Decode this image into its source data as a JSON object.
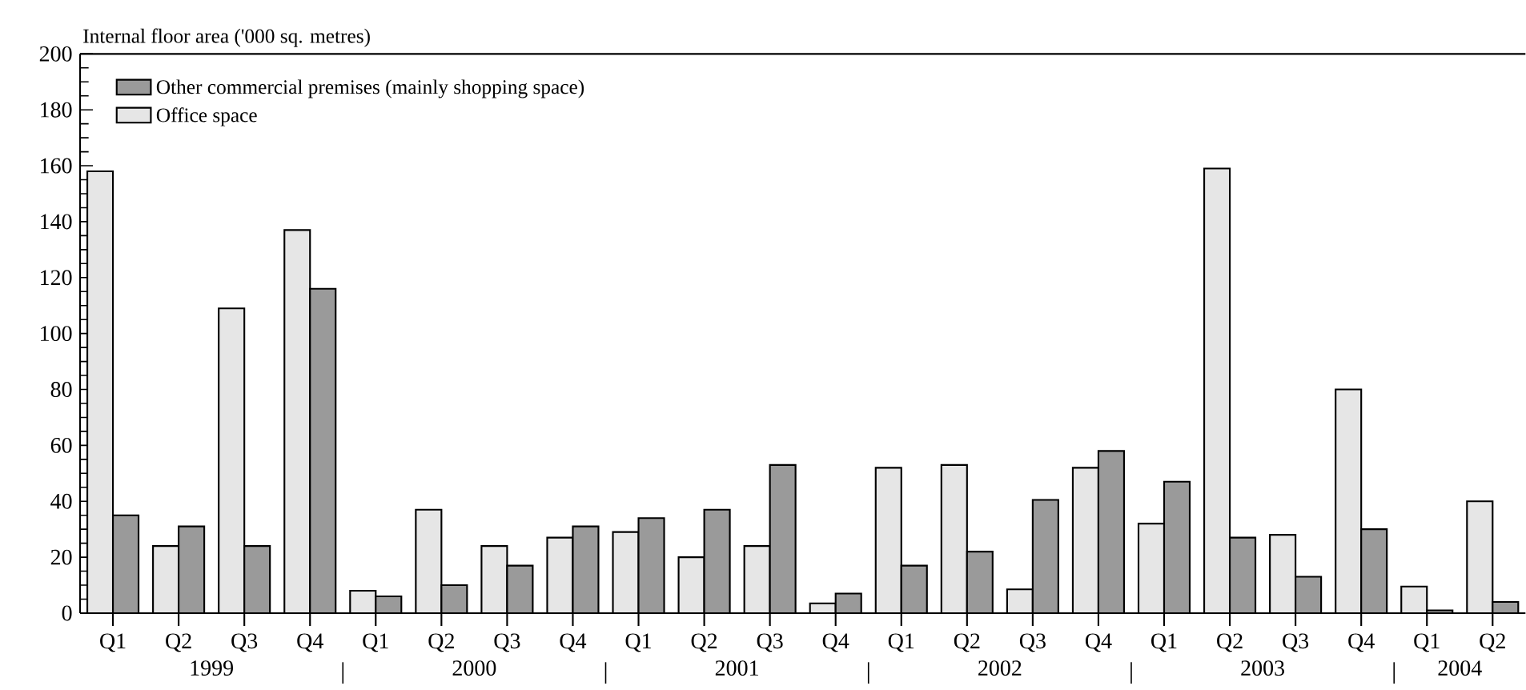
{
  "chart_data": {
    "type": "bar",
    "ylabel": "Internal floor area ('000 sq. metres)",
    "categories": [
      "Q1",
      "Q2",
      "Q3",
      "Q4",
      "Q1",
      "Q2",
      "Q3",
      "Q4",
      "Q1",
      "Q2",
      "Q3",
      "Q4",
      "Q1",
      "Q2",
      "Q3",
      "Q4",
      "Q1",
      "Q2",
      "Q3",
      "Q4",
      "Q1",
      "Q2"
    ],
    "series": [
      {
        "name": "Office space",
        "color": "#e6e6e6",
        "values": [
          158,
          24,
          109,
          137,
          8,
          37,
          24,
          27,
          29,
          20,
          24,
          3.5,
          52,
          53,
          8.5,
          52,
          32,
          159,
          28,
          80,
          9.5,
          40
        ]
      },
      {
        "name": "Other commercial premises (mainly shopping space)",
        "color": "#9a9a9a",
        "values": [
          35,
          31,
          24,
          116,
          6,
          10,
          17,
          31,
          34,
          37,
          53,
          7,
          17,
          22,
          40.5,
          58,
          47,
          27,
          13,
          30,
          1,
          4
        ]
      }
    ],
    "annotations": [
      "1999",
      "2000",
      "2001",
      "2002",
      "2003",
      "2004"
    ],
    "ylim": [
      0,
      200
    ],
    "yticks": [
      0,
      20,
      40,
      60,
      80,
      100,
      120,
      140,
      160,
      180,
      200
    ],
    "grid": false,
    "legend": "top left"
  }
}
